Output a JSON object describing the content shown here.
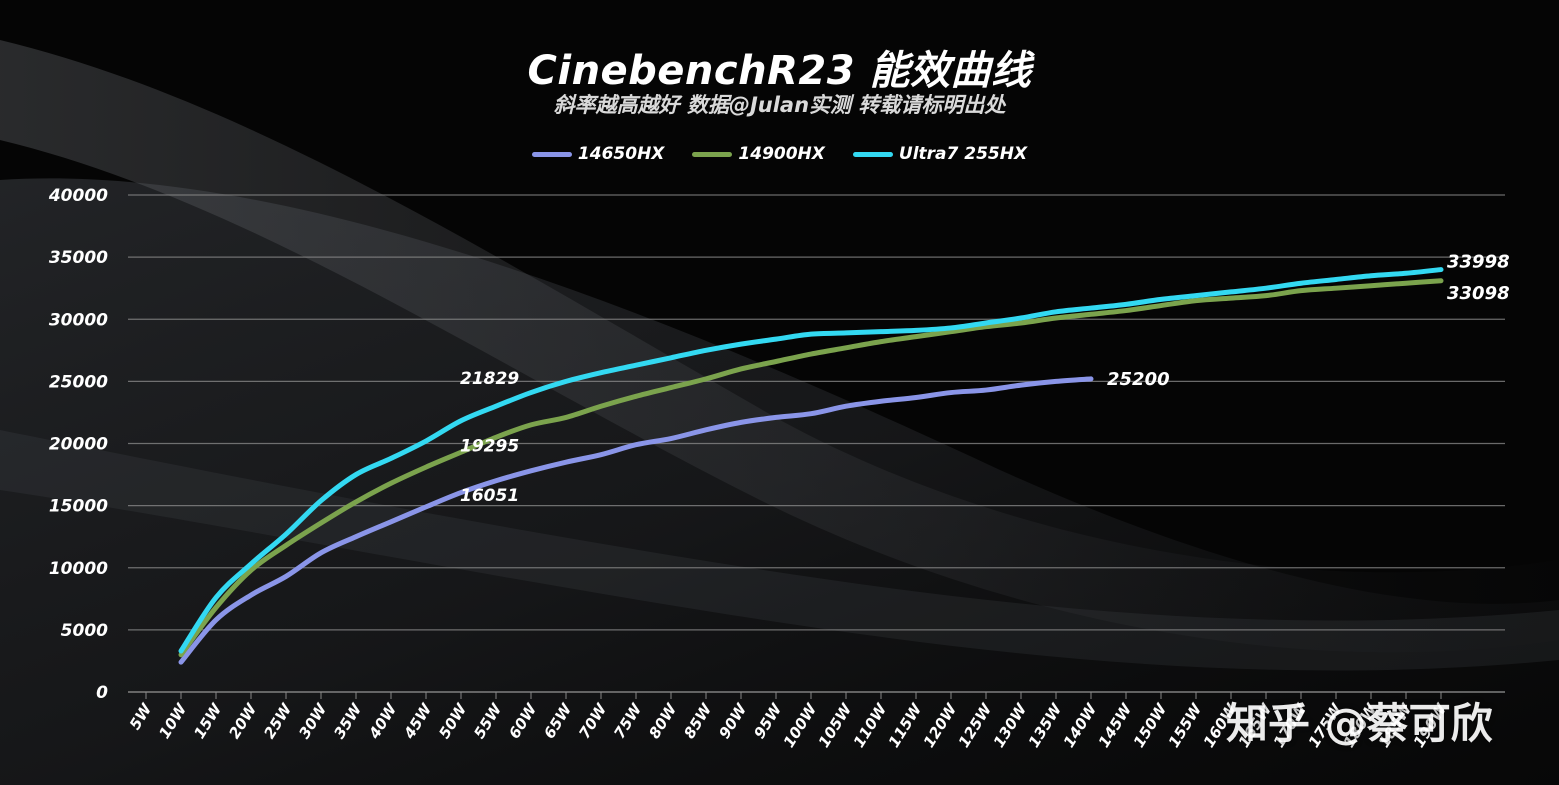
{
  "chart_data": {
    "type": "line",
    "title": "CinebenchR23 能效曲线",
    "subtitle": "斜率越高越好 数据@Julan实测 转载请标明出处",
    "xlabel": "",
    "ylabel": "",
    "ylim": [
      0,
      40000
    ],
    "yticks": [
      "0",
      "5000",
      "10000",
      "15000",
      "20000",
      "25000",
      "30000",
      "35000",
      "40000"
    ],
    "categories": [
      "5W",
      "10W",
      "15W",
      "20W",
      "25W",
      "30W",
      "35W",
      "40W",
      "45W",
      "50W",
      "55W",
      "60W",
      "65W",
      "70W",
      "75W",
      "80W",
      "85W",
      "90W",
      "95W",
      "100W",
      "105W",
      "110W",
      "115W",
      "120W",
      "125W",
      "130W",
      "135W",
      "140W",
      "145W",
      "150W",
      "155W",
      "160W",
      "165W",
      "170W",
      "175W",
      "180W",
      "185W",
      "190W"
    ],
    "grid": true,
    "legend_position": "top-center",
    "series": [
      {
        "name": "14650HX",
        "color": "#8a95e8",
        "x": [
          "10W",
          "15W",
          "20W",
          "25W",
          "30W",
          "35W",
          "40W",
          "45W",
          "50W",
          "55W",
          "60W",
          "65W",
          "70W",
          "75W",
          "80W",
          "85W",
          "90W",
          "95W",
          "100W",
          "105W",
          "110W",
          "115W",
          "120W",
          "125W",
          "130W",
          "135W",
          "140W"
        ],
        "values": [
          2400,
          5800,
          7800,
          9300,
          11200,
          12500,
          13700,
          14900,
          16051,
          17000,
          17800,
          18500,
          19100,
          19900,
          20400,
          21100,
          21700,
          22100,
          22400,
          23000,
          23400,
          23700,
          24100,
          24300,
          24700,
          25000,
          25200
        ],
        "end_label": "25200"
      },
      {
        "name": "14900HX",
        "color": "#7ba34d",
        "x": [
          "10W",
          "15W",
          "20W",
          "25W",
          "30W",
          "35W",
          "40W",
          "45W",
          "50W",
          "55W",
          "60W",
          "65W",
          "70W",
          "75W",
          "80W",
          "85W",
          "90W",
          "95W",
          "100W",
          "105W",
          "110W",
          "115W",
          "120W",
          "125W",
          "130W",
          "135W",
          "140W",
          "145W",
          "150W",
          "155W",
          "160W",
          "165W",
          "170W",
          "175W",
          "180W",
          "185W",
          "190W"
        ],
        "values": [
          3000,
          6800,
          9800,
          11800,
          13600,
          15300,
          16800,
          18100,
          19295,
          20500,
          21500,
          22100,
          23000,
          23800,
          24500,
          25200,
          26000,
          26600,
          27200,
          27700,
          28200,
          28600,
          29000,
          29400,
          29700,
          30100,
          30400,
          30700,
          31100,
          31500,
          31700,
          31900,
          32300,
          32500,
          32700,
          32900,
          33098
        ],
        "end_label": "33098"
      },
      {
        "name": "Ultra7 255HX",
        "color": "#33d9f2",
        "x": [
          "10W",
          "15W",
          "20W",
          "25W",
          "30W",
          "35W",
          "40W",
          "45W",
          "50W",
          "55W",
          "60W",
          "65W",
          "70W",
          "75W",
          "80W",
          "85W",
          "90W",
          "95W",
          "100W",
          "105W",
          "110W",
          "115W",
          "120W",
          "125W",
          "130W",
          "135W",
          "140W",
          "145W",
          "150W",
          "155W",
          "160W",
          "165W",
          "170W",
          "175W",
          "180W",
          "185W",
          "190W"
        ],
        "values": [
          3300,
          7600,
          10300,
          12700,
          15400,
          17500,
          18800,
          20200,
          21829,
          23000,
          24100,
          25000,
          25700,
          26300,
          26900,
          27500,
          28000,
          28400,
          28800,
          28900,
          29000,
          29100,
          29300,
          29700,
          30100,
          30600,
          30900,
          31200,
          31600,
          31900,
          32200,
          32500,
          32900,
          33200,
          33500,
          33700,
          33998
        ],
        "end_label": "33998"
      }
    ],
    "annotations": [
      {
        "text": "21829",
        "x": "55W",
        "series": "Ultra7 255HX"
      },
      {
        "text": "19295",
        "x": "55W",
        "series": "14900HX"
      },
      {
        "text": "16051",
        "x": "55W",
        "series": "14650HX"
      }
    ]
  },
  "watermark": "知乎 @蔡可欣",
  "colors": {
    "background": "#050505",
    "grid": "#8c8c8c",
    "text": "#ffffff"
  }
}
